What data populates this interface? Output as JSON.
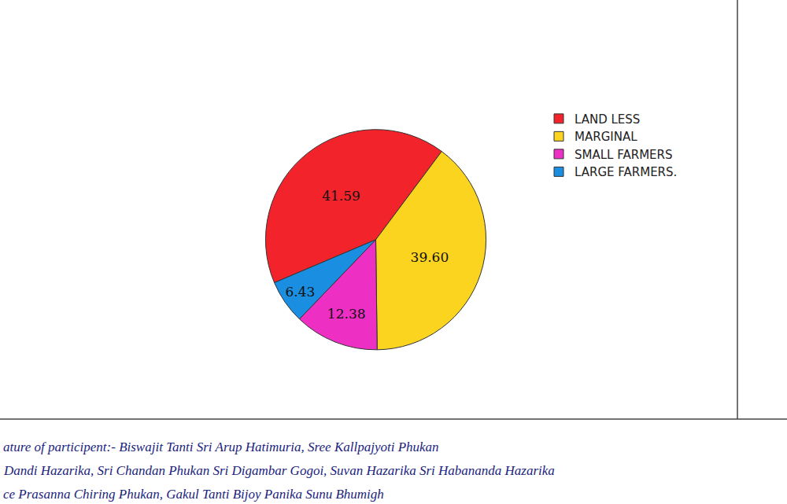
{
  "chart_data": {
    "type": "pie",
    "categories": [
      "LAND LESS",
      "MARGINAL",
      "SMALL FARMERS",
      "LARGE FARMERS."
    ],
    "values": [
      41.59,
      39.6,
      12.38,
      6.43
    ],
    "value_labels": [
      "41.59",
      "39.60",
      "12.38",
      "6.43"
    ],
    "colors": [
      "#f2232b",
      "#fbd41f",
      "#ee2fc4",
      "#1a8ee0"
    ],
    "data_labels": true,
    "legend": "right",
    "annotations": [
      "ature of participent:- Biswajit Tanti Sri Arup Hatimuria, Sree Kallpajyoti Phukan",
      "Dandi Hazarika, Sri Chandan Phukan Sri Digambar Gogoi, Suvan Hazarika Sri Habananda Hazarika",
      "ce Prasanna Chiring Phukan, Gakul Tanti Bijoy Panika Sunu Bhumigh"
    ]
  }
}
